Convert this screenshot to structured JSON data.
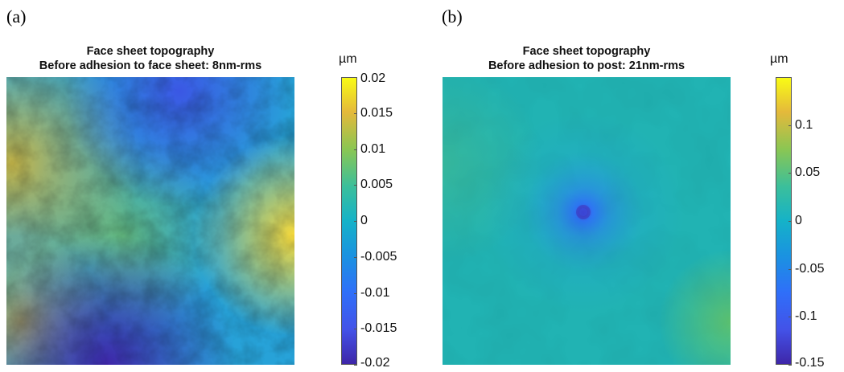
{
  "chart_data": [
    {
      "type": "heatmap",
      "panel_label": "(a)",
      "title": "Face sheet topography",
      "subtitle": "Before adhesion to face sheet: 8nm-rms",
      "colorbar_label": "µm",
      "colormap": "parula",
      "clim": [
        -0.02,
        0.02
      ],
      "colorbar_ticks": [
        -0.02,
        -0.015,
        -0.01,
        -0.005,
        0,
        0.005,
        0.01,
        0.015,
        0.02
      ],
      "colorbar_tick_labels": [
        "-0.02",
        "-0.015",
        "-0.01",
        "-0.005",
        "0",
        "0.005",
        "0.01",
        "0.015",
        "0.02"
      ]
    },
    {
      "type": "heatmap",
      "panel_label": "(b)",
      "title": "Face sheet topography",
      "subtitle": "Before adhesion to post: 21nm-rms",
      "colorbar_label": "µm",
      "colormap": "parula",
      "clim": [
        -0.15,
        0.15
      ],
      "colorbar_ticks": [
        -0.15,
        -0.1,
        -0.05,
        0,
        0.05,
        0.1
      ],
      "colorbar_tick_labels": [
        "-0.15",
        "-0.1",
        "-0.05",
        "0",
        "0.05",
        "0.1"
      ]
    }
  ],
  "colors": {
    "parula_dark_blue": "#3e26a8",
    "parula_blue": "#2f6ff9",
    "parula_cyan": "#15b2c8",
    "parula_green": "#6bc660",
    "parula_orange": "#f0ba3a",
    "parula_yellow": "#f9fb15"
  }
}
